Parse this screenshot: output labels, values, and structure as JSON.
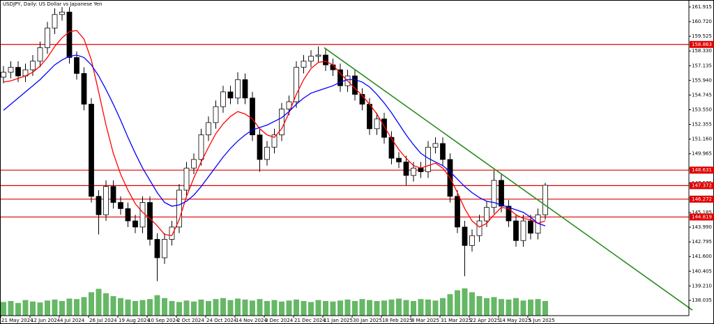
{
  "chart_data": {
    "type": "candlestick",
    "title": "USDJPY, Daily:  US Dollar vs Japanese Yen",
    "categories": [
      "21 May 2024",
      null,
      null,
      null,
      "12 Jun 2024",
      null,
      null,
      null,
      "4 Jul 2024",
      null,
      null,
      null,
      "26 Jul 2024",
      null,
      null,
      null,
      "19 Aug 2024",
      null,
      null,
      null,
      "10 Sep 2024",
      null,
      null,
      null,
      "2 Oct 2024",
      null,
      null,
      null,
      "24 Oct 2024",
      null,
      null,
      null,
      "14 Nov 2024",
      null,
      null,
      null,
      "3 Dec 2024",
      null,
      null,
      null,
      "21 Dec 2024",
      null,
      null,
      null,
      "11 Jan 2025",
      null,
      null,
      null,
      "30 Jan 2025",
      null,
      null,
      null,
      "18 Feb 2025",
      null,
      null,
      null,
      "8 Mar 2025",
      null,
      null,
      null,
      "31 Mar 2025",
      null,
      null,
      null,
      "22 Apr 2025",
      null,
      null,
      null,
      "14 May 2025",
      null,
      null,
      null,
      "5 Jun 2025",
      null,
      null
    ],
    "candles": {
      "open": [
        156.2,
        156.6,
        157.0,
        156.3,
        156.8,
        157.5,
        158.6,
        160.2,
        161.3,
        161.5,
        157.8,
        156.5,
        154.0,
        146.5,
        145.0,
        147.3,
        146.0,
        145.5,
        144.5,
        144.0,
        146.0,
        143.0,
        141.5,
        143.0,
        144.0,
        147.0,
        148.8,
        149.5,
        151.5,
        152.5,
        153.8,
        155.0,
        154.5,
        156.0,
        154.5,
        151.5,
        149.5,
        150.5,
        151.5,
        153.6,
        154.2,
        157.0,
        157.5,
        157.9,
        158.0,
        157.2,
        156.8,
        155.5,
        156.3,
        154.8,
        154.0,
        152.0,
        152.8,
        151.3,
        149.6,
        149.3,
        148.2,
        148.8,
        148.5,
        150.5,
        150.8,
        149.5,
        146.5,
        144.0,
        142.5,
        143.3,
        144.5,
        145.6,
        147.8,
        145.7,
        144.5,
        142.9,
        144.5,
        143.5,
        145.0
      ],
      "high": [
        157.1,
        157.5,
        157.5,
        157.3,
        158.0,
        159.1,
        160.7,
        161.8,
        161.9,
        161.9,
        158.3,
        157.0,
        154.5,
        147.0,
        147.8,
        147.8,
        146.5,
        146.0,
        145.0,
        146.5,
        146.5,
        143.5,
        143.5,
        144.5,
        147.5,
        149.3,
        150.0,
        152.0,
        153.0,
        154.3,
        155.5,
        155.5,
        156.6,
        156.5,
        155.0,
        152.0,
        151.0,
        152.0,
        154.1,
        154.7,
        157.5,
        158.0,
        158.4,
        158.7,
        158.5,
        157.7,
        157.3,
        156.8,
        156.8,
        155.3,
        154.5,
        153.3,
        153.3,
        151.8,
        150.1,
        149.8,
        149.3,
        149.3,
        151.0,
        151.3,
        151.3,
        150.0,
        147.0,
        144.5,
        143.8,
        145.0,
        146.1,
        148.6,
        148.3,
        146.2,
        145.0,
        145.0,
        145.0,
        145.5,
        147.6
      ],
      "low": [
        155.7,
        156.1,
        155.8,
        155.8,
        156.3,
        157.0,
        158.1,
        159.7,
        160.8,
        157.3,
        156.0,
        153.5,
        146.0,
        143.4,
        144.5,
        145.5,
        145.0,
        144.0,
        143.5,
        143.5,
        142.5,
        139.6,
        141.0,
        142.5,
        143.5,
        146.5,
        148.3,
        149.0,
        151.0,
        152.0,
        153.3,
        154.0,
        154.0,
        154.0,
        151.0,
        148.5,
        149.0,
        150.0,
        151.0,
        153.1,
        153.7,
        156.5,
        157.0,
        157.4,
        156.7,
        156.3,
        155.0,
        155.0,
        154.3,
        153.5,
        151.5,
        151.5,
        150.8,
        149.1,
        148.8,
        147.4,
        147.7,
        148.0,
        148.0,
        150.0,
        149.0,
        146.0,
        143.5,
        140.0,
        142.0,
        142.8,
        144.0,
        145.1,
        145.2,
        144.0,
        142.4,
        142.4,
        143.0,
        143.0,
        144.6
      ],
      "close": [
        156.6,
        157.0,
        156.3,
        156.8,
        157.5,
        158.6,
        160.2,
        161.3,
        161.5,
        157.8,
        156.5,
        154.0,
        146.5,
        145.0,
        147.3,
        146.0,
        145.5,
        144.5,
        144.0,
        146.0,
        143.0,
        141.5,
        143.0,
        144.0,
        147.0,
        148.8,
        149.5,
        151.5,
        152.5,
        153.8,
        155.0,
        154.5,
        156.0,
        154.5,
        151.5,
        149.5,
        150.5,
        151.5,
        153.6,
        154.2,
        157.0,
        157.5,
        157.9,
        158.0,
        157.2,
        156.8,
        155.5,
        156.3,
        154.8,
        154.0,
        152.0,
        152.8,
        151.3,
        149.6,
        149.3,
        148.2,
        148.8,
        148.5,
        150.5,
        150.8,
        149.5,
        146.5,
        144.0,
        142.5,
        143.3,
        144.5,
        145.6,
        147.8,
        145.7,
        144.5,
        142.9,
        144.5,
        143.5,
        145.0,
        147.4
      ]
    },
    "series": [
      {
        "color": "#ff0000",
        "values": [
          155.8,
          155.9,
          156.1,
          156.3,
          156.6,
          157.1,
          157.8,
          158.7,
          159.4,
          159.9,
          160.0,
          159.3,
          157.6,
          155.0,
          152.3,
          150.0,
          148.3,
          147.0,
          145.9,
          145.2,
          144.7,
          144.1,
          143.4,
          143.3,
          144.6,
          146.5,
          148.0,
          149.3,
          150.5,
          151.6,
          152.4,
          153.0,
          153.4,
          153.2,
          152.8,
          152.0,
          151.5,
          151.3,
          152.0,
          153.3,
          154.8,
          156.0,
          156.9,
          157.4,
          157.5,
          157.2,
          156.5,
          155.9,
          155.3,
          154.7,
          154.0,
          153.2,
          152.2,
          151.2,
          150.3,
          149.6,
          149.0,
          148.8,
          149.0,
          149.2,
          148.8,
          148.0,
          146.8,
          145.5,
          144.5,
          144.0,
          144.3,
          145.0,
          145.6,
          145.5,
          145.0,
          144.7,
          144.6,
          144.3,
          144.5
        ]
      },
      {
        "color": "#0000ff",
        "values": [
          153.5,
          154.0,
          154.5,
          155.0,
          155.5,
          156.0,
          156.6,
          157.2,
          157.6,
          157.9,
          158.0,
          157.8,
          157.2,
          156.3,
          155.2,
          154.0,
          152.7,
          151.3,
          150.0,
          148.8,
          147.8,
          146.8,
          146.0,
          145.7,
          145.8,
          146.1,
          146.6,
          147.3,
          148.1,
          148.9,
          149.7,
          150.4,
          151.0,
          151.5,
          151.9,
          152.1,
          152.3,
          152.6,
          152.9,
          153.4,
          154.0,
          154.5,
          154.9,
          155.1,
          155.3,
          155.5,
          155.8,
          156.0,
          156.0,
          155.8,
          155.4,
          154.8,
          154.1,
          153.3,
          152.4,
          151.5,
          150.7,
          150.0,
          149.6,
          149.3,
          149.0,
          148.5,
          147.9,
          147.3,
          146.8,
          146.4,
          146.1,
          146.0,
          145.8,
          145.6,
          145.4,
          145.2,
          144.8,
          144.3,
          144.1
        ]
      }
    ],
    "volume": {
      "color": "#33a033",
      "vlim": [
        0,
        100
      ],
      "values": [
        28,
        30,
        26,
        32,
        29,
        27,
        31,
        33,
        30,
        35,
        34,
        38,
        48,
        55,
        46,
        40,
        36,
        33,
        30,
        32,
        34,
        42,
        36,
        30,
        28,
        31,
        29,
        33,
        30,
        34,
        36,
        32,
        35,
        33,
        31,
        34,
        30,
        32,
        29,
        31,
        33,
        30,
        28,
        32,
        30,
        29,
        31,
        33,
        30,
        34,
        32,
        30,
        31,
        33,
        35,
        32,
        30,
        34,
        33,
        31,
        36,
        44,
        52,
        56,
        48,
        40,
        36,
        38,
        34,
        33,
        36,
        31,
        33,
        34,
        30
      ]
    },
    "hlines": {
      "color": "#e00000",
      "values": [
        158.863,
        148.631,
        147.372,
        146.272,
        144.819
      ]
    },
    "trendline": {
      "color": "#2a8c1e",
      "x": [
        43.8,
        94.1
      ],
      "y": [
        158.6,
        137.24
      ]
    },
    "ylim": [
      136.79,
      162.48
    ],
    "yticks": [
      {
        "value": 161.915,
        "label": "161.915"
      },
      {
        "value": 160.72,
        "label": "160.720"
      },
      {
        "value": 159.525,
        "label": "159.525"
      },
      {
        "value": 158.33,
        "label": "158.330"
      },
      {
        "value": 157.135,
        "label": "157.135"
      },
      {
        "value": 155.94,
        "label": "155.940"
      },
      {
        "value": 154.745,
        "label": "154.745"
      },
      {
        "value": 153.55,
        "label": "153.550"
      },
      {
        "value": 152.355,
        "label": "152.355"
      },
      {
        "value": 151.16,
        "label": "151.160"
      },
      {
        "value": 149.965,
        "label": "149.965"
      },
      {
        "value": 148.77,
        "label": "148.770"
      },
      {
        "value": 147.575,
        "label": "147.575"
      },
      {
        "value": 146.38,
        "label": "146.380"
      },
      {
        "value": 145.185,
        "label": "145.185"
      },
      {
        "value": 143.99,
        "label": "143.990"
      },
      {
        "value": 142.795,
        "label": "142.795"
      },
      {
        "value": 141.6,
        "label": "141.600"
      },
      {
        "value": 140.405,
        "label": "140.405"
      },
      {
        "value": 139.21,
        "label": "139.210"
      },
      {
        "value": 138.035,
        "label": "138.035"
      }
    ]
  }
}
